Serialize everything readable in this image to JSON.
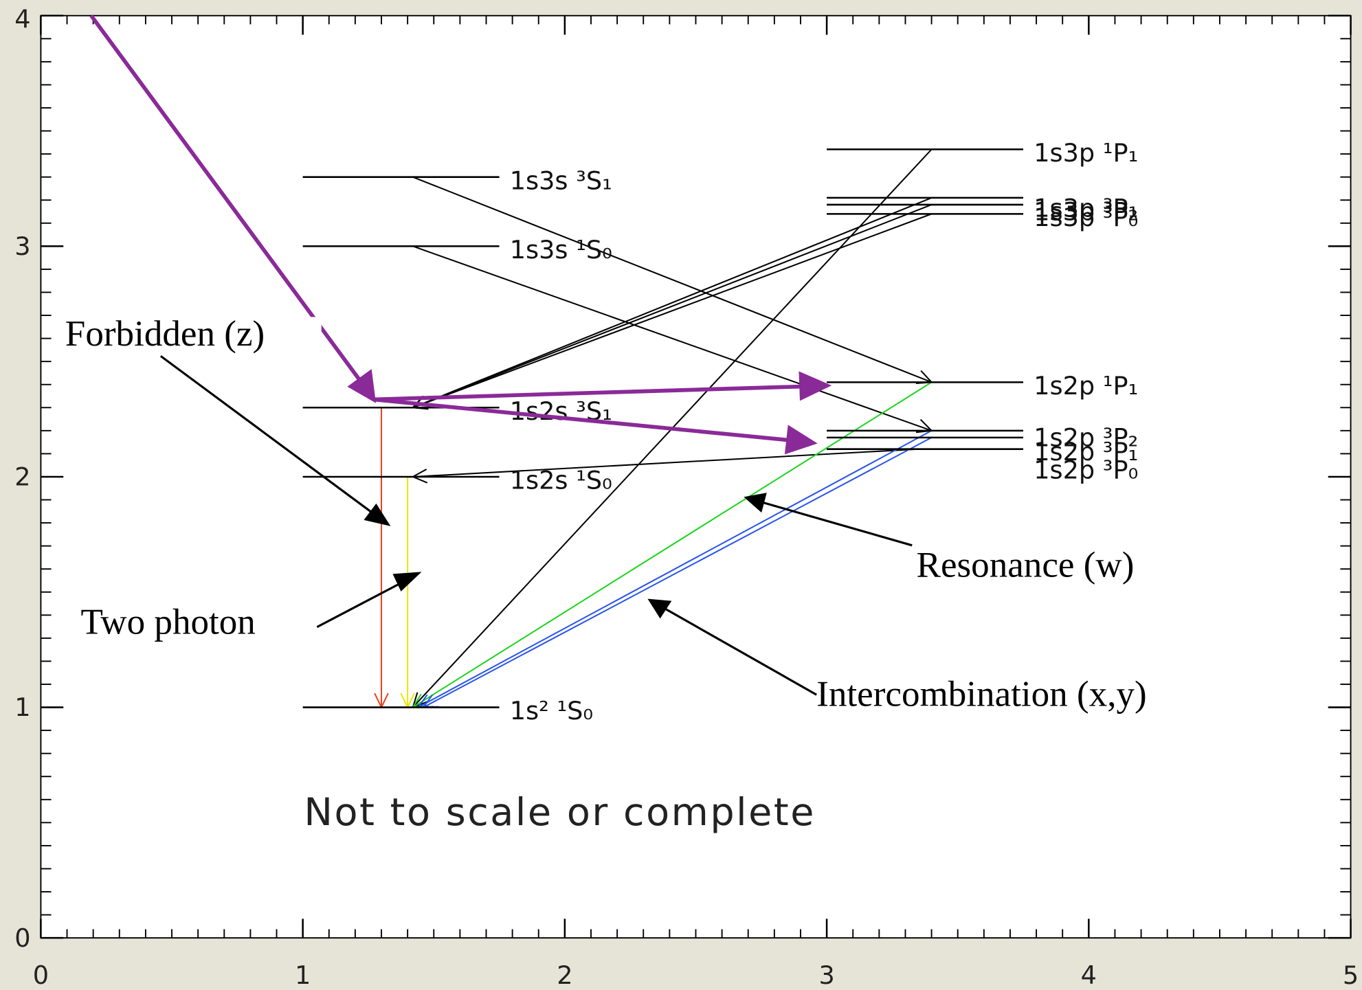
{
  "axes": {
    "xticks": [
      0,
      1,
      2,
      3,
      4,
      5
    ],
    "yticks": [
      0,
      1,
      2,
      3,
      4
    ],
    "xlim": [
      0,
      5
    ],
    "ylim": [
      0,
      4
    ]
  },
  "levels": [
    {
      "label": "1s3s ³S₁",
      "energy": 3.3
    },
    {
      "label": "1s3s ¹S₀",
      "energy": 3.0
    },
    {
      "label": "1s2s ³S₁",
      "energy": 2.3
    },
    {
      "label": "1s2s ¹S₀",
      "energy": 2.0
    },
    {
      "label": "1s² ¹S₀",
      "energy": 1.0
    },
    {
      "label": "1s3p ¹P₁",
      "energy": 3.42
    },
    {
      "label": "1s3p ³P₂",
      "energy": 3.21
    },
    {
      "label": "1s3p ³P₁",
      "energy": 3.18
    },
    {
      "label": "1s3p ³P₀",
      "energy": 3.14
    },
    {
      "label": "1s2p ¹P₁",
      "energy": 2.41
    },
    {
      "label": "1s2p ³P₂",
      "energy": 2.2
    },
    {
      "label": "1s2p ³P₁",
      "energy": 2.17
    },
    {
      "label": "1s2p ³P₀",
      "energy": 2.12
    }
  ],
  "annotations": {
    "forbidden": "Forbidden (z)",
    "two_photon": "Two photon",
    "resonance": "Resonance (w)",
    "intercombination": "Intercombination (x,y)",
    "note": "Not to scale or complete"
  }
}
